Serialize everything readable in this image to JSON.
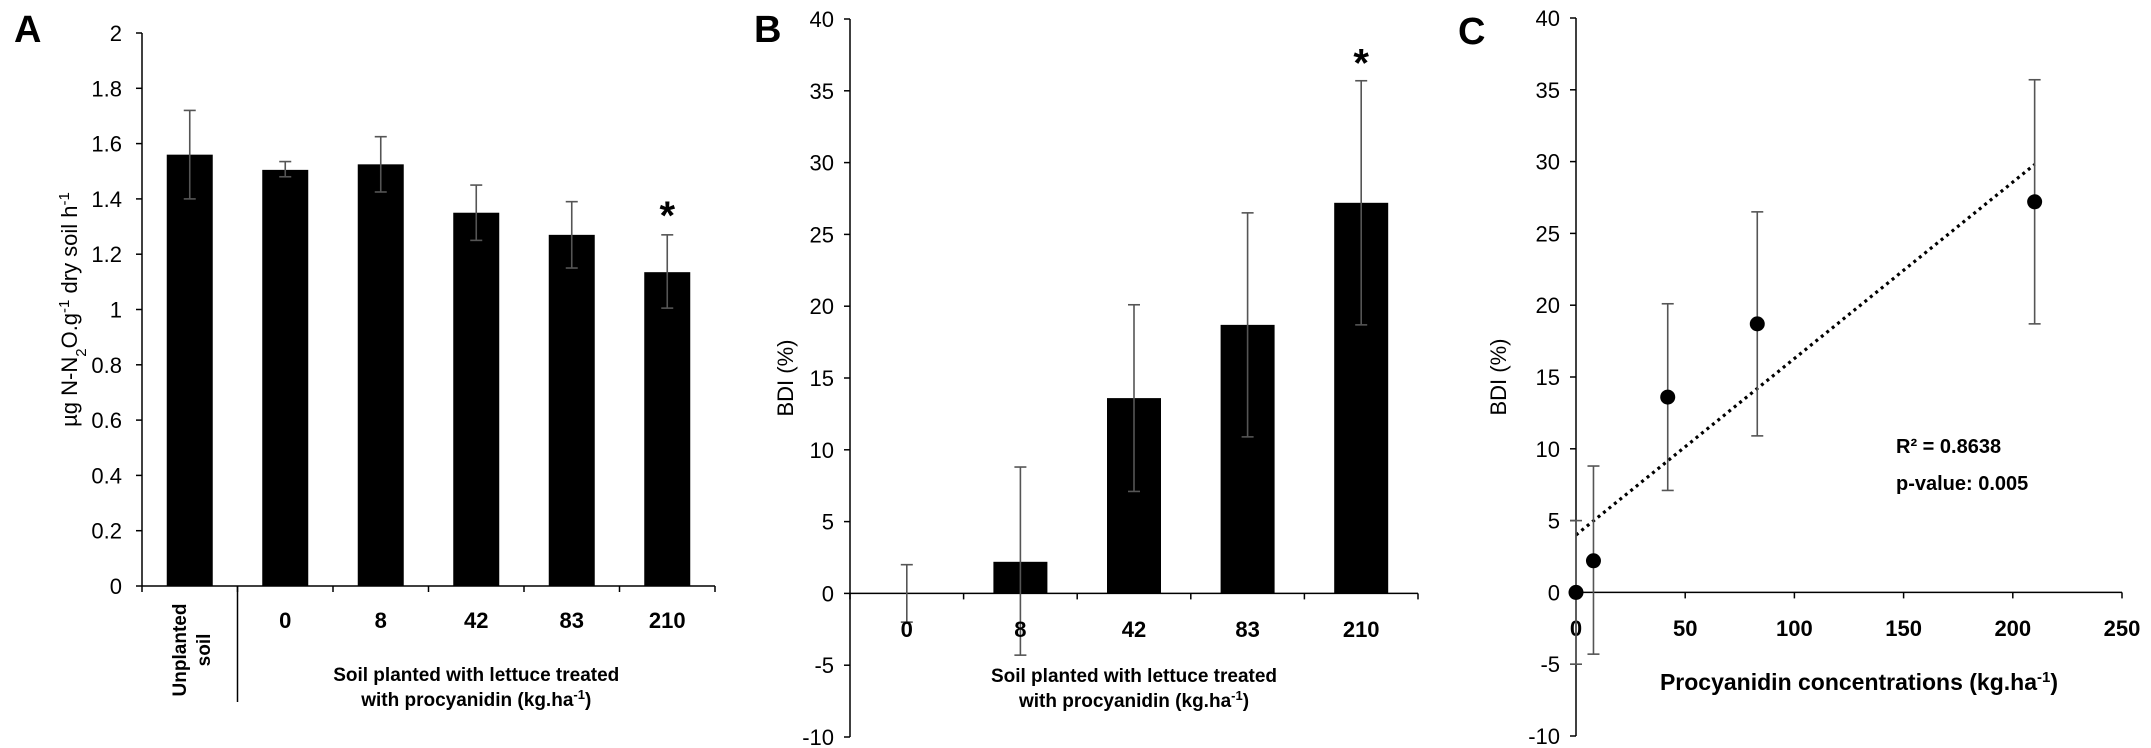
{
  "chart_data": [
    {
      "type": "bar",
      "panel_label": "A",
      "ylabel_parts": [
        "µg N-N",
        "2",
        "O.g",
        "-1",
        " dry soil h",
        "-1"
      ],
      "ylim": [
        0,
        2
      ],
      "yticks": [
        0,
        0.2,
        0.4,
        0.6,
        0.8,
        1,
        1.2,
        1.4,
        1.6,
        1.8,
        2
      ],
      "ytick_labels": [
        "0",
        "0.2",
        "0.4",
        "0.6",
        "0.8",
        "1",
        "1.2",
        "1.4",
        "1.6",
        "1.8",
        "2"
      ],
      "categories": [
        "",
        "0",
        "8",
        "42",
        "83",
        "210"
      ],
      "control_label_lines": [
        "Unplanted",
        "soil"
      ],
      "xlabel_lines": [
        "Soil planted with lettuce treated",
        "with procyanidin (kg.ha",
        "-1",
        ")"
      ],
      "values": [
        1.56,
        1.505,
        1.525,
        1.35,
        1.27,
        1.135
      ],
      "error_upper": [
        1.72,
        1.535,
        1.625,
        1.45,
        1.39,
        1.27
      ],
      "error_lower": [
        1.4,
        1.48,
        1.425,
        1.25,
        1.15,
        1.005
      ],
      "significance": [
        "",
        "",
        "",
        "",
        "",
        "*"
      ],
      "grid": false
    },
    {
      "type": "bar",
      "panel_label": "B",
      "ylabel": "BDI (%)",
      "ylim": [
        -10,
        40
      ],
      "yticks": [
        -10,
        -5,
        0,
        5,
        10,
        15,
        20,
        25,
        30,
        35,
        40
      ],
      "ytick_labels": [
        "-10",
        "-5",
        "0",
        "5",
        "10",
        "15",
        "20",
        "25",
        "30",
        "35",
        "40"
      ],
      "categories": [
        "0",
        "8",
        "42",
        "83",
        "210"
      ],
      "xlabel_lines": [
        "Soil planted with lettuce treated",
        "with procyanidin (kg.ha",
        "-1",
        ")"
      ],
      "values": [
        0,
        2.2,
        13.6,
        18.7,
        27.2
      ],
      "error_upper": [
        2.0,
        8.8,
        20.1,
        26.5,
        35.7
      ],
      "error_lower": [
        -2.0,
        -4.3,
        7.1,
        10.9,
        18.7
      ],
      "significance": [
        "",
        "",
        "",
        "",
        "*"
      ],
      "grid": false
    },
    {
      "type": "scatter",
      "panel_label": "C",
      "ylabel": "BDI (%)",
      "xlabel_parts": [
        "Procyanidin concentrations (kg.ha",
        "-1",
        ")"
      ],
      "xlim": [
        0,
        250
      ],
      "ylim": [
        -10,
        40
      ],
      "xticks": [
        0,
        50,
        100,
        150,
        200,
        250
      ],
      "xtick_labels": [
        "0",
        "50",
        "100",
        "150",
        "200",
        "250"
      ],
      "yticks": [
        -10,
        -5,
        0,
        5,
        10,
        15,
        20,
        25,
        30,
        35,
        40
      ],
      "ytick_labels": [
        "-10",
        "-5",
        "0",
        "5",
        "10",
        "15",
        "20",
        "25",
        "30",
        "35",
        "40"
      ],
      "x": [
        0,
        8,
        42,
        83,
        210
      ],
      "y": [
        0,
        2.2,
        13.6,
        18.7,
        27.2
      ],
      "error_upper": [
        5.0,
        8.8,
        20.1,
        26.5,
        35.7
      ],
      "error_lower": [
        -5.0,
        -4.3,
        7.1,
        10.9,
        18.7
      ],
      "trendline": {
        "x": [
          0,
          210
        ],
        "y": [
          4.0,
          29.8
        ]
      },
      "annotations": [
        "R² = 0.8638",
        "p-value: 0.005"
      ],
      "grid": false
    }
  ]
}
